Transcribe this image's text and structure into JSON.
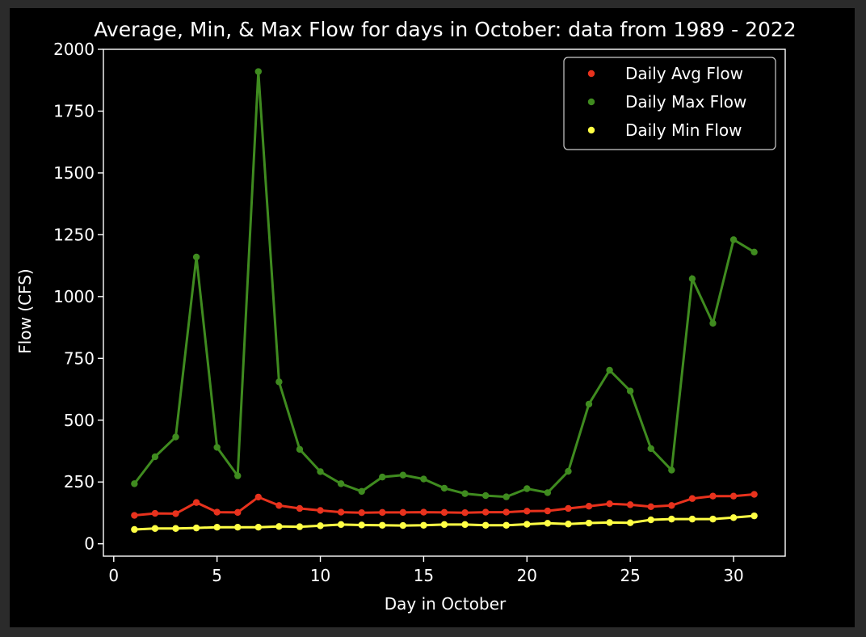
{
  "chart_data": {
    "type": "line",
    "title": "Average, Min, & Max Flow for days in October: data from 1989 - 2022",
    "xlabel": "Day in October",
    "ylabel": "Flow (CFS)",
    "xlim": [
      -0.5,
      32.5
    ],
    "ylim": [
      -50,
      2000
    ],
    "x_ticks": [
      0,
      5,
      10,
      15,
      20,
      25,
      30
    ],
    "y_ticks": [
      0,
      250,
      500,
      750,
      1000,
      1250,
      1500,
      1750,
      2000
    ],
    "grid": false,
    "legend_position": "top-right",
    "x": [
      1,
      2,
      3,
      4,
      5,
      6,
      7,
      8,
      9,
      10,
      11,
      12,
      13,
      14,
      15,
      16,
      17,
      18,
      19,
      20,
      21,
      22,
      23,
      24,
      25,
      26,
      27,
      28,
      29,
      30,
      31
    ],
    "series": [
      {
        "name": "Daily Avg Flow",
        "color": "#e8321d",
        "values": [
          115,
          123,
          122,
          167,
          128,
          127,
          189,
          155,
          143,
          135,
          128,
          126,
          127,
          127,
          128,
          127,
          126,
          128,
          128,
          132,
          133,
          143,
          152,
          162,
          158,
          150,
          155,
          183,
          193,
          193,
          200
        ]
      },
      {
        "name": "Daily Max Flow",
        "color": "#3f8b1f",
        "values": [
          243,
          352,
          432,
          1160,
          390,
          275,
          1910,
          655,
          382,
          292,
          243,
          212,
          270,
          278,
          262,
          225,
          203,
          195,
          190,
          223,
          207,
          293,
          565,
          702,
          618,
          385,
          298,
          1072,
          892,
          1230,
          1180
        ]
      },
      {
        "name": "Daily Min Flow",
        "color": "#ffff44",
        "values": [
          58,
          62,
          62,
          64,
          67,
          67,
          67,
          70,
          69,
          73,
          78,
          76,
          75,
          74,
          75,
          78,
          78,
          75,
          75,
          79,
          83,
          80,
          84,
          86,
          85,
          97,
          100,
          100,
          100,
          106,
          113
        ]
      }
    ]
  }
}
